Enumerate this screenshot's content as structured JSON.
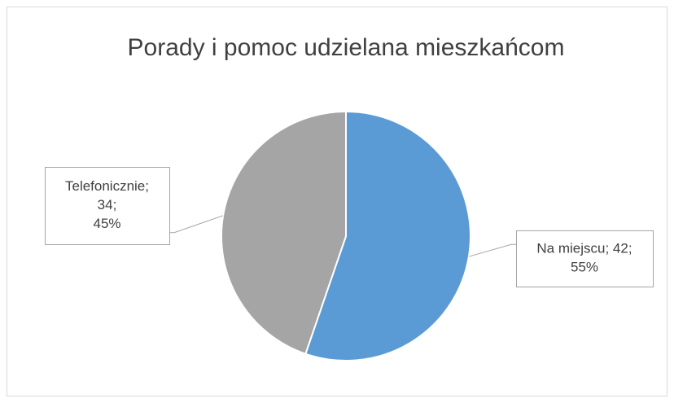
{
  "chart_data": {
    "type": "pie",
    "title": "Porady i pomoc udzielana mieszkańcom",
    "categories": [
      "Na miejscu",
      "Telefonicznie"
    ],
    "values": [
      42,
      34
    ],
    "colors": [
      "#5b9bd5",
      "#a5a5a5"
    ],
    "value_labels": [
      [
        "Na miejscu; 42;",
        "55%"
      ],
      [
        "Telefonicznie;",
        "34;",
        "45%"
      ]
    ]
  }
}
